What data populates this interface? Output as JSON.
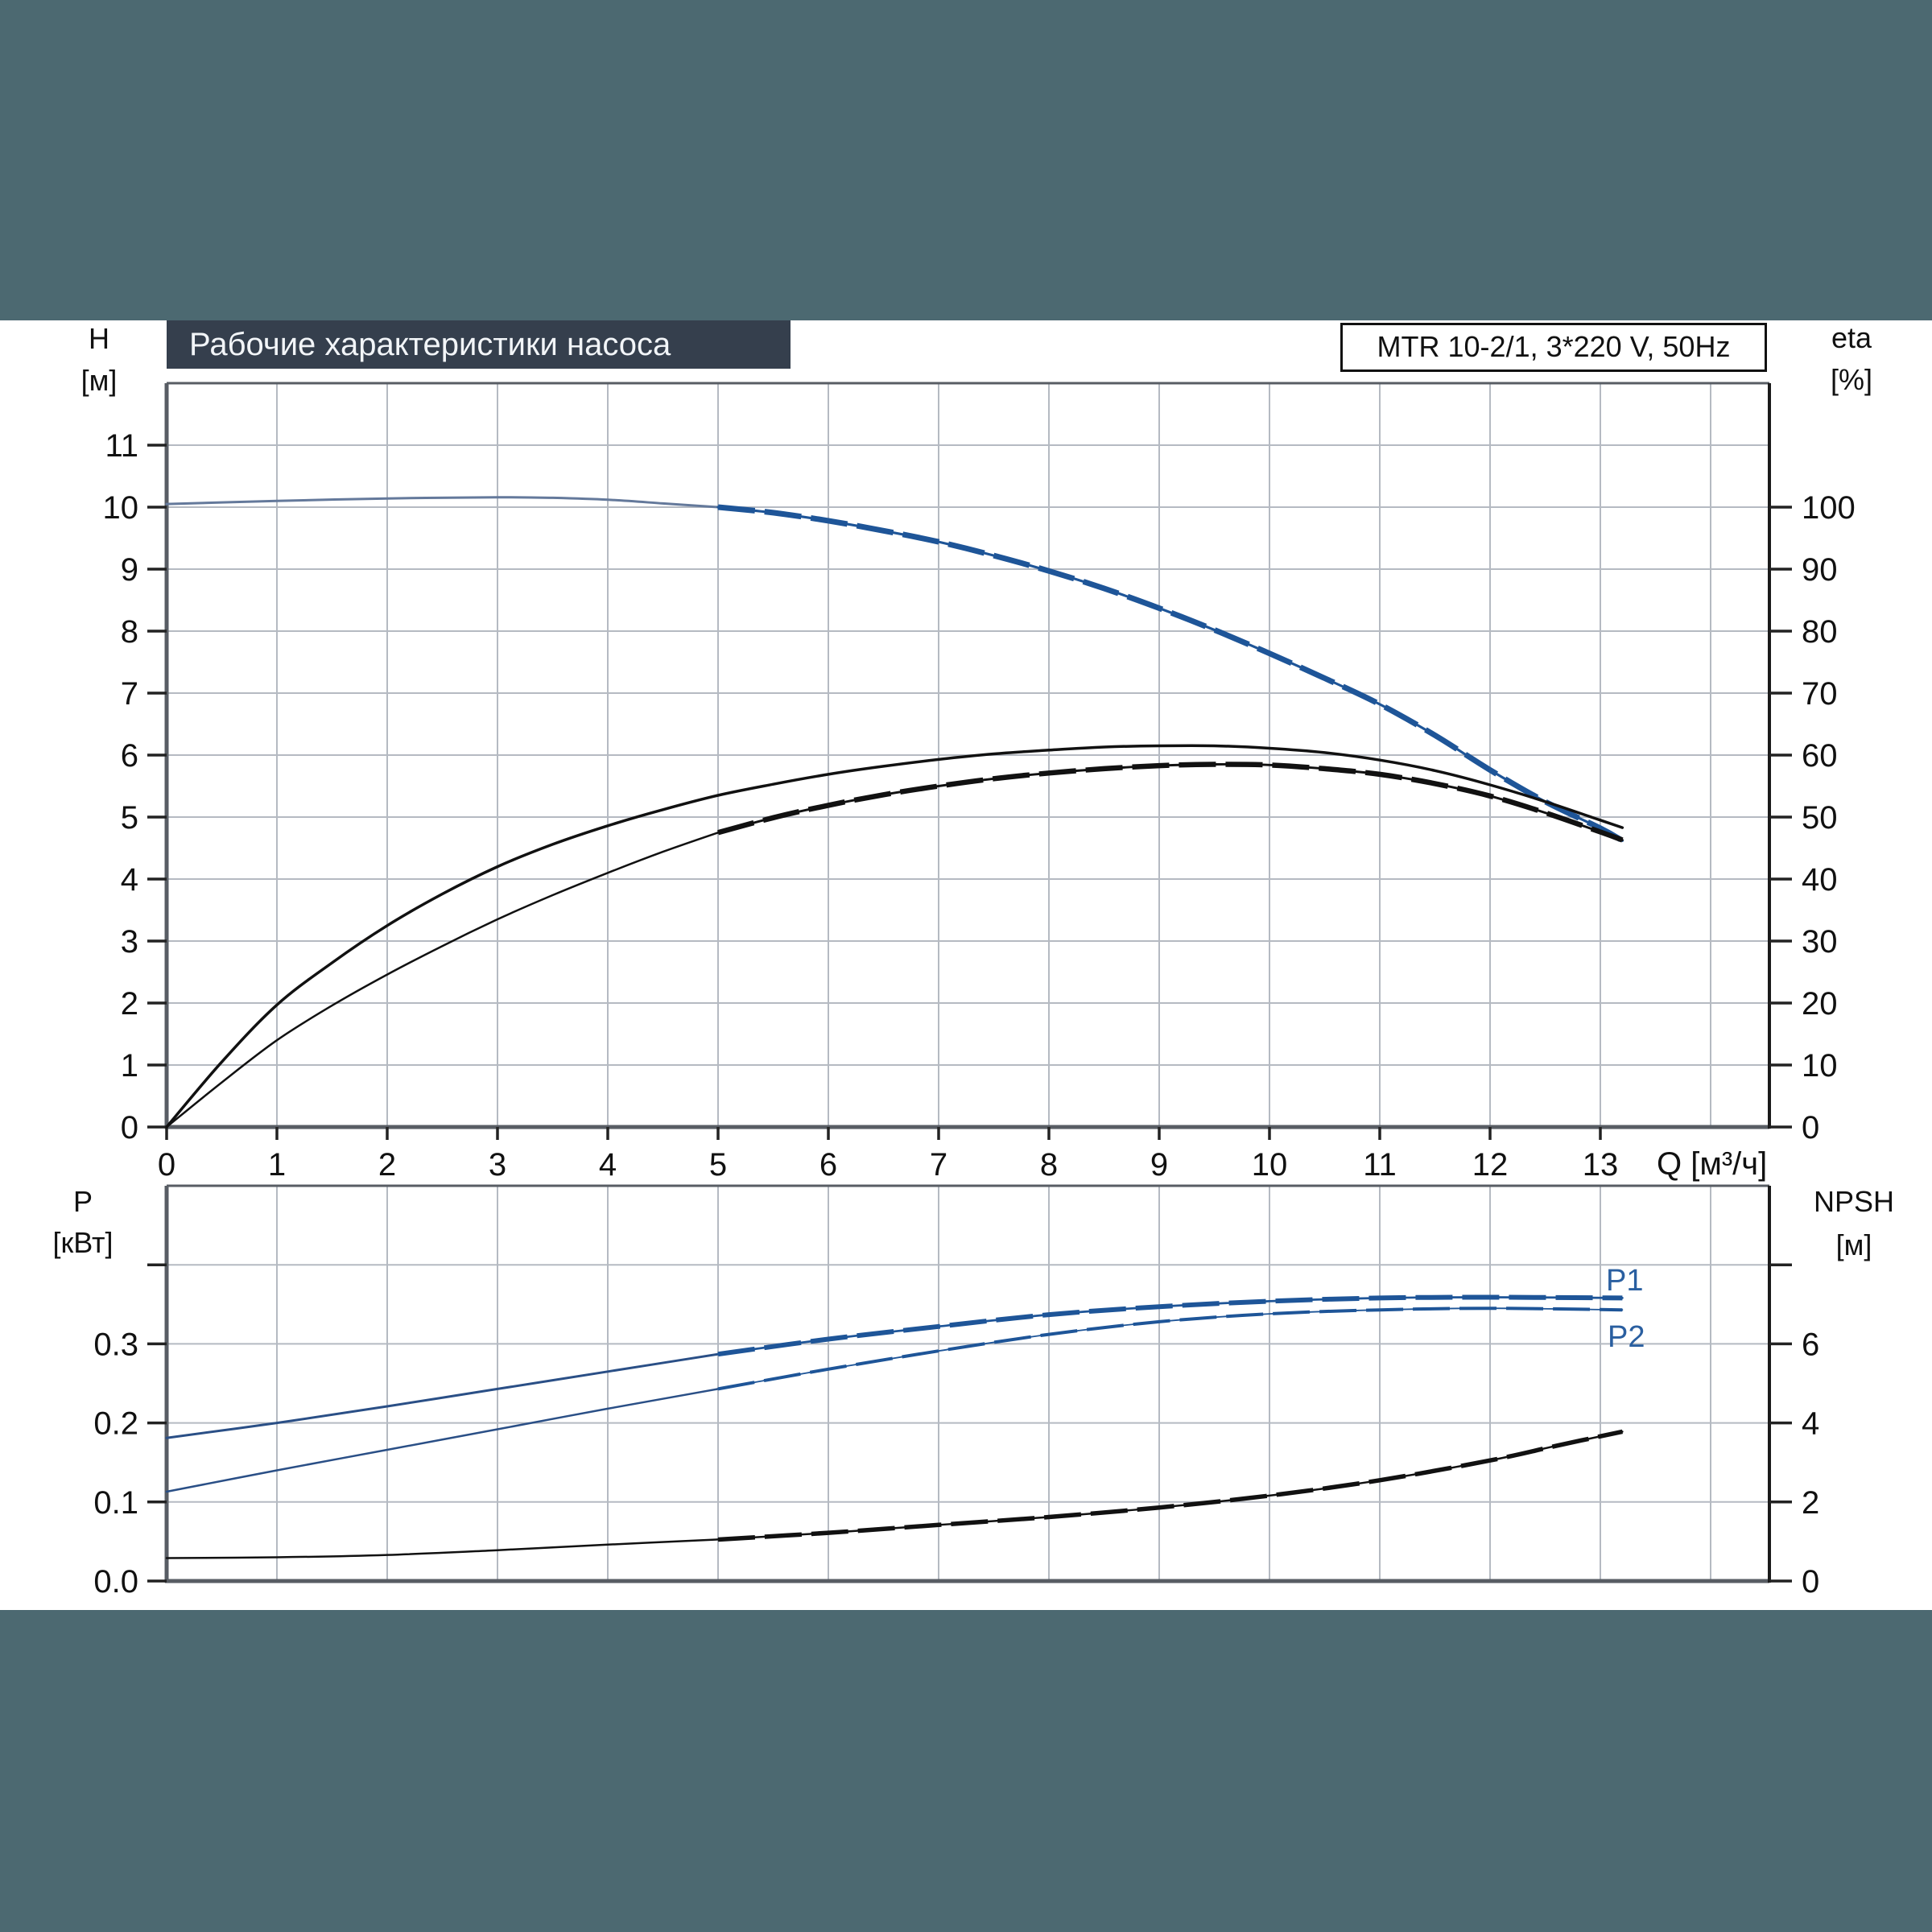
{
  "page": {
    "background": "#ffffff",
    "band_color": "#4c6971"
  },
  "header": {
    "title": "Рабочие характеристики насоса",
    "model_label": "MTR 10-2/1, 3*220 V, 50Hz"
  },
  "labels": {
    "top_left_axis": "H",
    "top_left_unit": "[м]",
    "top_right_axis": "eta",
    "top_right_unit": "[%]",
    "x_axis": "Q [м³/ч]",
    "bottom_left_axis": "P",
    "bottom_left_unit": "[кВт]",
    "bottom_right_axis": "NPSH",
    "bottom_right_unit": "[м]",
    "p1": "P1",
    "p2": "P2"
  },
  "colors": {
    "blue_thick": "#1e5598",
    "blue_thin": "#64799b",
    "blue_p": "#2a4f86",
    "black_curve": "#111111",
    "grid": "#b5bac2",
    "frame": "#585d64",
    "frame_right": "#1a1a1a",
    "tick": "#222222",
    "title_box_bg": "#353f4d",
    "title_text": "#f2f5f8",
    "p_label_color": "#2a5fa0"
  },
  "chart_data": [
    {
      "id": "head-efficiency",
      "type": "line",
      "title": "Рабочие характеристики насоса",
      "xlabel": "Q [м³/ч]",
      "ylabel_left": "H [м]",
      "ylabel_right": "eta [%]",
      "xlim": [
        0,
        14.53
      ],
      "ylim_left": [
        0,
        12
      ],
      "ylim_right": [
        0,
        120
      ],
      "grid": true,
      "x_gridlines": [
        1,
        2,
        3,
        4,
        5,
        6,
        7,
        8,
        9,
        10,
        11,
        12,
        13,
        14
      ],
      "x_tick_labels": [
        0,
        1,
        2,
        3,
        4,
        5,
        6,
        7,
        8,
        9,
        10,
        11,
        12,
        13
      ],
      "y_gridlines_left": [
        1,
        2,
        3,
        4,
        5,
        6,
        7,
        8,
        9,
        10,
        11
      ],
      "y_tick_labels_left": [
        0,
        1,
        2,
        3,
        4,
        5,
        6,
        7,
        8,
        9,
        10,
        11
      ],
      "y_tick_labels_right": [
        0,
        10,
        20,
        30,
        40,
        50,
        60,
        70,
        80,
        90,
        100
      ],
      "series": [
        {
          "name": "qh-curve-thin",
          "axis": "left",
          "color": "blue_thin",
          "width": 3,
          "overlay": false,
          "points": [
            [
              0,
              10.05
            ],
            [
              1,
              10.1
            ],
            [
              2,
              10.14
            ],
            [
              3,
              10.16
            ],
            [
              3.5,
              10.15
            ],
            [
              4,
              10.12
            ],
            [
              4.5,
              10.06
            ],
            [
              5,
              10.0
            ],
            [
              5.3,
              9.95
            ]
          ]
        },
        {
          "name": "qh-curve-thick",
          "axis": "left",
          "color": "blue_thick",
          "width": 7,
          "overlay": true,
          "points": [
            [
              5,
              10.0
            ],
            [
              5.5,
              9.91
            ],
            [
              6,
              9.78
            ],
            [
              6.5,
              9.62
            ],
            [
              7,
              9.44
            ],
            [
              7.5,
              9.22
            ],
            [
              8,
              8.97
            ],
            [
              8.5,
              8.69
            ],
            [
              9,
              8.37
            ],
            [
              9.5,
              8.02
            ],
            [
              10,
              7.64
            ],
            [
              10.5,
              7.24
            ],
            [
              11,
              6.82
            ],
            [
              11.5,
              6.32
            ],
            [
              12,
              5.76
            ],
            [
              12.5,
              5.25
            ],
            [
              13,
              4.82
            ],
            [
              13.2,
              4.62
            ]
          ]
        },
        {
          "name": "eta-pump-curve",
          "axis": "right",
          "color": "black_curve",
          "width": 3.5,
          "overlay": false,
          "points": [
            [
              0,
              0
            ],
            [
              0.5,
              10.5
            ],
            [
              1,
              19.7
            ],
            [
              1.5,
              26.5
            ],
            [
              2,
              32.5
            ],
            [
              2.5,
              37.6
            ],
            [
              3,
              42.0
            ],
            [
              3.5,
              45.6
            ],
            [
              4,
              48.6
            ],
            [
              4.5,
              51.2
            ],
            [
              5,
              53.5
            ],
            [
              5.5,
              55.3
            ],
            [
              6,
              56.9
            ],
            [
              6.5,
              58.2
            ],
            [
              7,
              59.3
            ],
            [
              7.5,
              60.2
            ],
            [
              8,
              60.8
            ],
            [
              8.5,
              61.3
            ],
            [
              9,
              61.5
            ],
            [
              9.5,
              61.5
            ],
            [
              10,
              61.1
            ],
            [
              10.5,
              60.4
            ],
            [
              11,
              59.2
            ],
            [
              11.5,
              57.5
            ],
            [
              12,
              55.2
            ],
            [
              12.5,
              52.5
            ],
            [
              13,
              49.5
            ],
            [
              13.2,
              48.3
            ]
          ]
        },
        {
          "name": "eta-total-curve-thin",
          "axis": "right",
          "color": "black_curve",
          "width": 2.5,
          "overlay": false,
          "points": [
            [
              0,
              0
            ],
            [
              0.5,
              7.2
            ],
            [
              1,
              14.0
            ],
            [
              1.5,
              19.6
            ],
            [
              2,
              24.6
            ],
            [
              2.5,
              29.2
            ],
            [
              3,
              33.5
            ],
            [
              3.5,
              37.4
            ],
            [
              4,
              41.0
            ],
            [
              4.5,
              44.4
            ],
            [
              5,
              47.5
            ]
          ]
        },
        {
          "name": "eta-total-curve-thick",
          "axis": "right",
          "color": "black_curve",
          "width": 6.5,
          "overlay": true,
          "points": [
            [
              5,
              47.5
            ],
            [
              5.5,
              49.9
            ],
            [
              6,
              51.9
            ],
            [
              6.5,
              53.6
            ],
            [
              7,
              55.0
            ],
            [
              7.5,
              56.2
            ],
            [
              8,
              57.1
            ],
            [
              8.5,
              57.8
            ],
            [
              9,
              58.3
            ],
            [
              9.5,
              58.5
            ],
            [
              10,
              58.4
            ],
            [
              10.5,
              57.8
            ],
            [
              11,
              56.9
            ],
            [
              11.5,
              55.4
            ],
            [
              12,
              53.4
            ],
            [
              12.5,
              50.7
            ],
            [
              13,
              47.6
            ],
            [
              13.2,
              46.3
            ]
          ]
        }
      ]
    },
    {
      "id": "power-npsh",
      "type": "line",
      "title": "",
      "xlabel": "Q [м³/ч]",
      "ylabel_left": "P [кВт]",
      "ylabel_right": "NPSH [м]",
      "xlim": [
        0,
        14.53
      ],
      "ylim_left": [
        0,
        0.5
      ],
      "ylim_right": [
        0,
        10
      ],
      "grid": true,
      "x_gridlines": [
        1,
        2,
        3,
        4,
        5,
        6,
        7,
        8,
        9,
        10,
        11,
        12,
        13,
        14
      ],
      "x_tick_labels": [],
      "y_gridlines_left": [
        0.1,
        0.2,
        0.3,
        0.4
      ],
      "y_tick_labels_left": [
        "0.0",
        "0.1",
        "0.2",
        "0.3"
      ],
      "y_tick_labels_right": [
        0,
        2,
        4,
        6
      ],
      "y_ticks_right_all": [
        0,
        2,
        4,
        6,
        8
      ],
      "y_ticks_left_all": [
        0,
        0.1,
        0.2,
        0.3,
        0.4
      ],
      "series": [
        {
          "name": "p1-curve-thin",
          "axis": "left",
          "color": "blue_p",
          "width": 3,
          "overlay": false,
          "points": [
            [
              0,
              0.181
            ],
            [
              1,
              0.2
            ],
            [
              2,
              0.221
            ],
            [
              3,
              0.243
            ],
            [
              4,
              0.265
            ],
            [
              5,
              0.287
            ]
          ]
        },
        {
          "name": "p1-curve-thick",
          "axis": "left",
          "color": "blue_thick",
          "width": 6,
          "overlay": true,
          "points": [
            [
              5,
              0.287
            ],
            [
              6,
              0.306
            ],
            [
              7,
              0.322
            ],
            [
              8,
              0.337
            ],
            [
              9,
              0.347
            ],
            [
              10,
              0.354
            ],
            [
              11,
              0.358
            ],
            [
              12,
              0.359
            ],
            [
              13.2,
              0.358
            ]
          ]
        },
        {
          "name": "p2-curve-thin",
          "axis": "left",
          "color": "blue_p",
          "width": 2.5,
          "overlay": false,
          "points": [
            [
              0,
              0.113
            ],
            [
              1,
              0.14
            ],
            [
              2,
              0.166
            ],
            [
              3,
              0.192
            ],
            [
              4,
              0.218
            ],
            [
              5,
              0.243
            ]
          ]
        },
        {
          "name": "p2-curve-thick",
          "axis": "left",
          "color": "blue_thick",
          "width": 4,
          "overlay": true,
          "points": [
            [
              5,
              0.243
            ],
            [
              6,
              0.268
            ],
            [
              7,
              0.291
            ],
            [
              8,
              0.312
            ],
            [
              9,
              0.328
            ],
            [
              10,
              0.338
            ],
            [
              11,
              0.343
            ],
            [
              12,
              0.345
            ],
            [
              13.2,
              0.343
            ]
          ]
        },
        {
          "name": "npsh-curve-thin",
          "axis": "right",
          "color": "black_curve",
          "width": 2.5,
          "overlay": false,
          "points": [
            [
              0,
              0.58
            ],
            [
              1,
              0.6
            ],
            [
              2,
              0.66
            ],
            [
              3,
              0.78
            ],
            [
              4,
              0.92
            ],
            [
              5,
              1.05
            ]
          ]
        },
        {
          "name": "npsh-curve-thick",
          "axis": "right",
          "color": "black_curve",
          "width": 5.5,
          "overlay": true,
          "points": [
            [
              5,
              1.05
            ],
            [
              6,
              1.22
            ],
            [
              7,
              1.42
            ],
            [
              8,
              1.62
            ],
            [
              9,
              1.86
            ],
            [
              10,
              2.16
            ],
            [
              11,
              2.55
            ],
            [
              12,
              3.05
            ],
            [
              12.6,
              3.42
            ],
            [
              13.2,
              3.78
            ]
          ]
        }
      ]
    }
  ]
}
